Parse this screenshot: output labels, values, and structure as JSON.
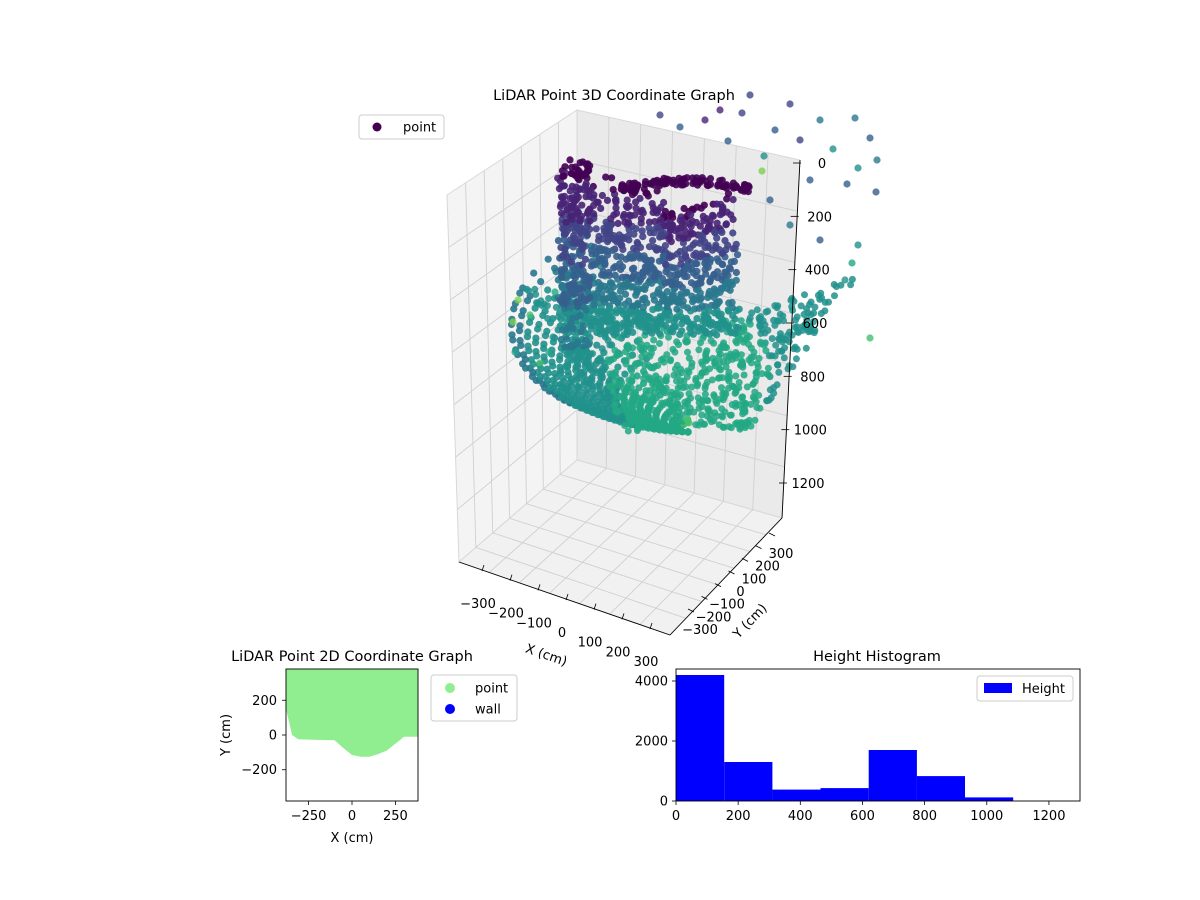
{
  "colors": {
    "point_2d": "#90ee90",
    "wall": "#0000ff",
    "histogram": "#0000ff",
    "legend_3d_marker": "#440154"
  },
  "chart_data": [
    {
      "type": "scatter",
      "projection": "3d",
      "title": "LiDAR Point 3D Coordinate Graph",
      "xlabel": "X (cm)",
      "ylabel": "Y (cm)",
      "zlabel": "",
      "xticks": [
        "−300",
        "−200",
        "−100",
        "0",
        "100",
        "200",
        "300"
      ],
      "yticks": [
        "−300",
        "−200",
        "−100",
        "0",
        "100",
        "200",
        "300"
      ],
      "zticks": [
        "0",
        "200",
        "400",
        "600",
        "800",
        "1000",
        "1200"
      ],
      "zlim": [
        0,
        1200
      ],
      "z_inverted": true,
      "colormap": "viridis",
      "legend": [
        "point"
      ],
      "legend_position": "upper-left",
      "grid": true
    },
    {
      "type": "scatter",
      "title": "LiDAR Point 2D Coordinate Graph",
      "xlabel": "X (cm)",
      "ylabel": "Y (cm)",
      "xticks": [
        "−250",
        "0",
        "250"
      ],
      "yticks": [
        "200",
        "0",
        "−200"
      ],
      "xlim": [
        -380,
        380
      ],
      "ylim": [
        -380,
        380
      ],
      "legend": [
        "point",
        "wall"
      ],
      "legend_position": "outside-right",
      "point_region_boundary": [
        [
          -380,
          380
        ],
        [
          380,
          380
        ],
        [
          380,
          -10
        ],
        [
          300,
          -10
        ],
        [
          250,
          -50
        ],
        [
          200,
          -90
        ],
        [
          150,
          -110
        ],
        [
          100,
          -125
        ],
        [
          50,
          -125
        ],
        [
          0,
          -115
        ],
        [
          -50,
          -75
        ],
        [
          -100,
          -30
        ],
        [
          -200,
          -28
        ],
        [
          -310,
          -25
        ],
        [
          -345,
          0
        ],
        [
          -380,
          150
        ]
      ]
    },
    {
      "type": "bar",
      "subtype": "histogram",
      "title": "Height Histogram",
      "xlabel": "",
      "ylabel": "",
      "bin_edges": [
        0,
        155,
        310,
        465,
        620,
        775,
        930,
        1085,
        1240
      ],
      "values": [
        4200,
        1300,
        380,
        430,
        1700,
        830,
        120,
        0
      ],
      "xticks": [
        "0",
        "200",
        "400",
        "600",
        "800",
        "1000",
        "1200"
      ],
      "yticks": [
        "0",
        "2000",
        "4000"
      ],
      "xlim": [
        0,
        1300
      ],
      "ylim": [
        0,
        4400
      ],
      "legend": [
        "Height"
      ],
      "legend_position": "top-right"
    }
  ]
}
